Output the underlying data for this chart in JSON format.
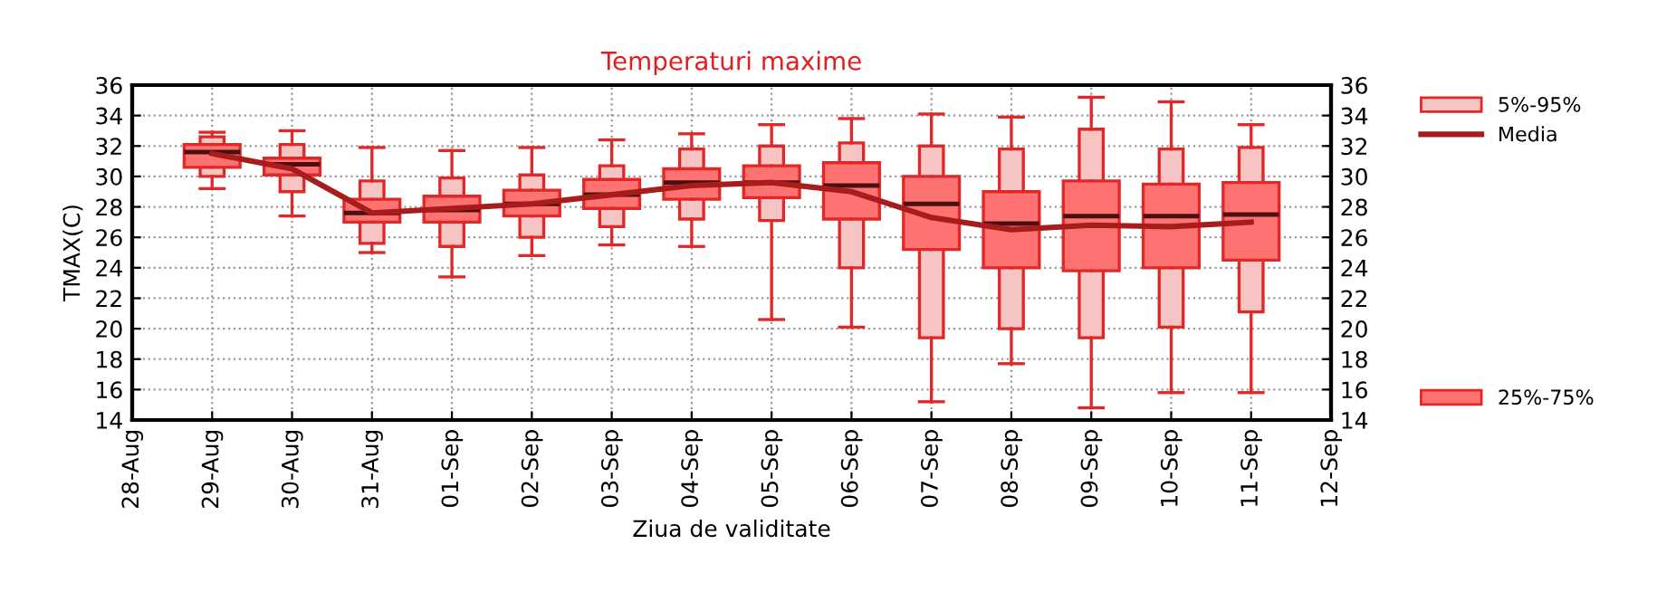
{
  "chart_data": {
    "type": "box",
    "title": "Temperaturi maxime",
    "xlabel": "Ziua de validitate",
    "ylabel": "TMAX(C)",
    "categories": [
      "28-Aug",
      "29-Aug",
      "30-Aug",
      "31-Aug",
      "01-Sep",
      "02-Sep",
      "03-Sep",
      "04-Sep",
      "05-Sep",
      "06-Sep",
      "07-Sep",
      "08-Sep",
      "09-Sep",
      "10-Sep",
      "11-Sep",
      "12-Sep"
    ],
    "ylim": [
      14,
      36
    ],
    "yticks": [
      14,
      16,
      18,
      20,
      22,
      24,
      26,
      28,
      30,
      32,
      34,
      36
    ],
    "y2lim": [
      14,
      36
    ],
    "y2ticks": [
      14,
      16,
      18,
      20,
      22,
      24,
      26,
      28,
      30,
      32,
      34,
      36
    ],
    "grid": true,
    "legend": "right",
    "series": [
      {
        "name": "5%-95%",
        "type": "box",
        "color": "#f7c4c4",
        "boxes": [
          null,
          {
            "low": 29.2,
            "q1": 30.0,
            "median": 31.6,
            "q3": 32.6,
            "high": 32.9
          },
          {
            "low": 27.4,
            "q1": 29.0,
            "median": 30.8,
            "q3": 32.1,
            "high": 33.0
          },
          {
            "low": 25.0,
            "q1": 25.6,
            "median": 27.6,
            "q3": 29.7,
            "high": 31.9
          },
          {
            "low": 23.4,
            "q1": 25.4,
            "median": 27.8,
            "q3": 29.9,
            "high": 31.7
          },
          {
            "low": 24.8,
            "q1": 26.0,
            "median": 28.2,
            "q3": 30.1,
            "high": 31.9
          },
          {
            "low": 25.5,
            "q1": 26.7,
            "median": 28.8,
            "q3": 30.7,
            "high": 32.4
          },
          {
            "low": 25.4,
            "q1": 27.2,
            "median": 29.6,
            "q3": 31.8,
            "high": 32.8
          },
          {
            "low": 20.6,
            "q1": 27.1,
            "median": 29.6,
            "q3": 32.0,
            "high": 33.4
          },
          {
            "low": 20.1,
            "q1": 24.0,
            "median": 29.4,
            "q3": 32.2,
            "high": 33.8
          },
          {
            "low": 15.2,
            "q1": 19.4,
            "median": 28.2,
            "q3": 32.0,
            "high": 34.1
          },
          {
            "low": 17.7,
            "q1": 20.0,
            "median": 26.9,
            "q3": 31.8,
            "high": 33.9
          },
          {
            "low": 14.8,
            "q1": 19.4,
            "median": 27.4,
            "q3": 33.1,
            "high": 35.2
          },
          {
            "low": 15.8,
            "q1": 20.1,
            "median": 27.4,
            "q3": 31.8,
            "high": 34.9
          },
          {
            "low": 15.8,
            "q1": 21.1,
            "median": 27.5,
            "q3": 31.9,
            "high": 33.4
          },
          null
        ]
      },
      {
        "name": "Media",
        "type": "line",
        "color": "#a81c1c",
        "values": [
          null,
          31.5,
          30.5,
          27.6,
          27.9,
          28.2,
          28.8,
          29.4,
          29.6,
          29.0,
          27.3,
          26.5,
          26.8,
          26.7,
          27.0,
          null
        ]
      },
      {
        "name": "25%-75%",
        "type": "box",
        "color": "#ff7272",
        "boxes": [
          null,
          {
            "low": 30.6,
            "q1": 30.6,
            "median": 31.6,
            "q3": 32.1,
            "high": 32.1
          },
          {
            "low": 30.1,
            "q1": 30.1,
            "median": 30.8,
            "q3": 31.2,
            "high": 31.2
          },
          {
            "low": 27.0,
            "q1": 27.0,
            "median": 27.6,
            "q3": 28.5,
            "high": 28.5
          },
          {
            "low": 27.0,
            "q1": 27.0,
            "median": 27.8,
            "q3": 28.7,
            "high": 28.7
          },
          {
            "low": 27.4,
            "q1": 27.4,
            "median": 28.2,
            "q3": 29.1,
            "high": 29.1
          },
          {
            "low": 27.9,
            "q1": 27.9,
            "median": 28.8,
            "q3": 29.8,
            "high": 29.8
          },
          {
            "low": 28.5,
            "q1": 28.5,
            "median": 29.6,
            "q3": 30.5,
            "high": 30.5
          },
          {
            "low": 28.6,
            "q1": 28.6,
            "median": 29.6,
            "q3": 30.7,
            "high": 30.7
          },
          {
            "low": 27.2,
            "q1": 27.2,
            "median": 29.4,
            "q3": 30.9,
            "high": 30.9
          },
          {
            "low": 25.2,
            "q1": 25.2,
            "median": 28.2,
            "q3": 30.0,
            "high": 30.0
          },
          {
            "low": 24.0,
            "q1": 24.0,
            "median": 26.9,
            "q3": 29.0,
            "high": 29.0
          },
          {
            "low": 23.8,
            "q1": 23.8,
            "median": 27.4,
            "q3": 29.7,
            "high": 29.7
          },
          {
            "low": 24.0,
            "q1": 24.0,
            "median": 27.4,
            "q3": 29.5,
            "high": 29.5
          },
          {
            "low": 24.5,
            "q1": 24.5,
            "median": 27.5,
            "q3": 29.6,
            "high": 29.6
          },
          null
        ]
      }
    ]
  }
}
